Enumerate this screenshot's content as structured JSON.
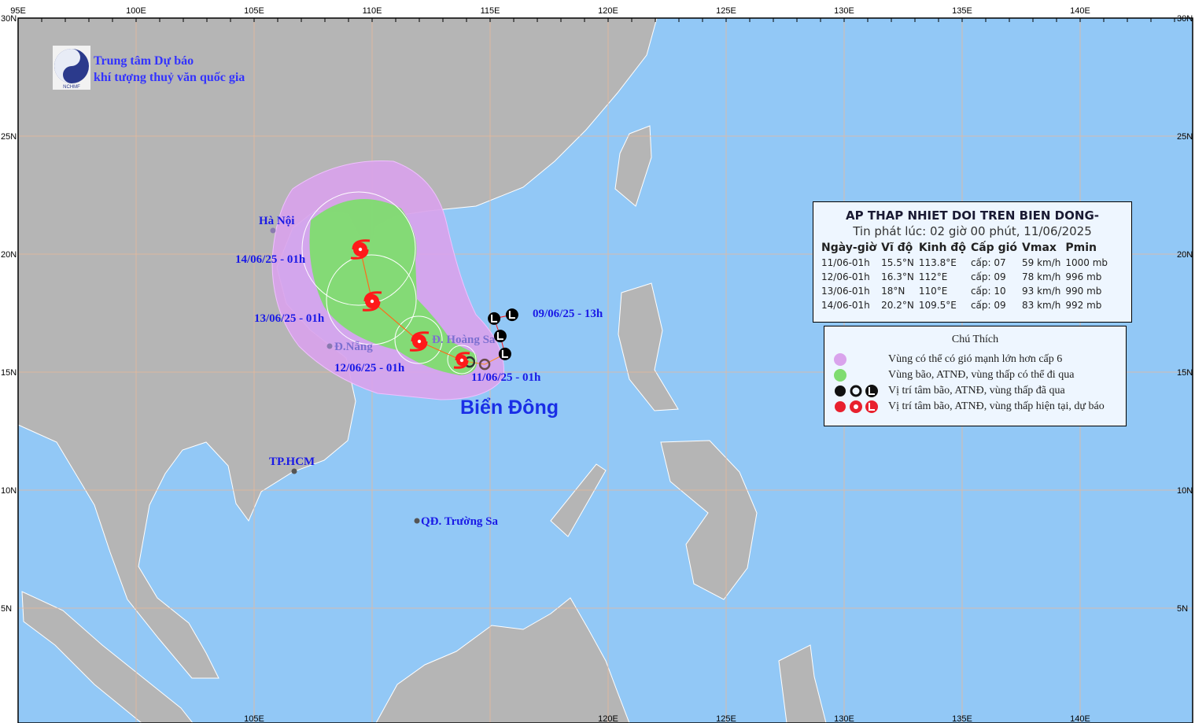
{
  "map": {
    "colors": {
      "land": "#b5b5b5",
      "ocean": "#92c8f6",
      "grid": "#e8b89a",
      "strong_wind_zone": "#d9a3ec",
      "storm_zone": "#7fdc70",
      "past_track": "#000000",
      "forecast_track": "#ff1a1a"
    },
    "lon_ticks": [
      "95E",
      "100E",
      "105E",
      "110E",
      "115E",
      "120E",
      "125E",
      "130E",
      "135E",
      "140E"
    ],
    "lon_values": [
      95,
      100,
      105,
      110,
      115,
      120,
      125,
      130,
      135,
      140
    ],
    "lat_ticks": [
      "30N",
      "25N",
      "20N",
      "15N",
      "10N",
      "5N"
    ],
    "lat_values": [
      30,
      25,
      20,
      15,
      10,
      5
    ],
    "bottom_ticks": [
      "105E",
      "120E",
      "125E",
      "130E",
      "135E",
      "140E"
    ],
    "bottom_values": [
      105,
      120,
      125,
      130,
      135,
      140
    ]
  },
  "logo": {
    "line1": "Trung tâm Dự báo",
    "line2": "khí tượng thuỷ văn quốc gia",
    "abbr": "NCHMF"
  },
  "places": [
    {
      "name": "Hà Nội",
      "lat": 21.0,
      "lon": 105.8
    },
    {
      "name": "Đ.Nẵng",
      "lat": 16.1,
      "lon": 108.2
    },
    {
      "name": "TP.HCM",
      "lat": 10.8,
      "lon": 106.7
    },
    {
      "name": "QĐ. Trường Sa",
      "lat": 8.7,
      "lon": 111.9
    },
    {
      "name": "Đ. Hoàng Sa",
      "lat": 16.5,
      "lon": 112.2
    }
  ],
  "sea_label": "Biển Đông",
  "track_labels": [
    {
      "text": "09/06/25 - 13h",
      "lat": 17.5,
      "lon": 116.8
    },
    {
      "text": "11/06/25 - 01h",
      "lat": 14.8,
      "lon": 114.2
    },
    {
      "text": "12/06/25 - 01h",
      "lat": 15.2,
      "lon": 108.4
    },
    {
      "text": "13/06/25 - 01h",
      "lat": 17.3,
      "lon": 105.0
    },
    {
      "text": "14/06/25 - 01h",
      "lat": 19.8,
      "lon": 104.2
    }
  ],
  "past_track": [
    {
      "type": "L",
      "lat": 17.43,
      "lon": 115.93
    },
    {
      "type": "L",
      "lat": 17.27,
      "lon": 115.17
    },
    {
      "type": "L",
      "lat": 16.53,
      "lon": 115.43
    },
    {
      "type": "L",
      "lat": 15.77,
      "lon": 115.63
    },
    {
      "type": "O",
      "lat": 15.33,
      "lon": 114.77
    },
    {
      "type": "O",
      "lat": 15.43,
      "lon": 114.13
    }
  ],
  "forecast_track": [
    {
      "time": "11/06-01h",
      "lat": 15.5,
      "lon": 113.8
    },
    {
      "time": "12/06-01h",
      "lat": 16.3,
      "lon": 112.0
    },
    {
      "time": "13/06-01h",
      "lat": 18.0,
      "lon": 110.0
    },
    {
      "time": "14/06-01h",
      "lat": 20.2,
      "lon": 109.5
    }
  ],
  "info": {
    "title": "AP THAP NHIET DOI TREN BIEN DONG-",
    "issued": "Tin phát lúc: 02 giờ 00 phút, 11/06/2025",
    "headers": [
      "Ngày-giờ",
      "Vĩ độ",
      "Kinh độ",
      "Cấp gió",
      "Vmax",
      "Pmin"
    ],
    "rows": [
      [
        "11/06-01h",
        "15.5°N",
        "113.8°E",
        "cấp: 07",
        "59 km/h",
        "1000 mb"
      ],
      [
        "12/06-01h",
        "16.3°N",
        "112°E",
        "cấp: 09",
        "78 km/h",
        "996 mb"
      ],
      [
        "13/06-01h",
        "18°N",
        "110°E",
        "cấp: 10",
        "93 km/h",
        "990 mb"
      ],
      [
        "14/06-01h",
        "20.2°N",
        "109.5°E",
        "cấp: 09",
        "83 km/h",
        "992 mb"
      ]
    ]
  },
  "legend": {
    "title": "Chú Thích",
    "items": [
      {
        "label": "Vùng có thể có gió mạnh lớn hơn cấp 6",
        "icon": "purple-circle"
      },
      {
        "label": "Vùng bão, ATNĐ, vùng thấp có thể đi qua",
        "icon": "green-circle"
      },
      {
        "label": "Vị trí tâm bão, ATNĐ, vùng thấp đã qua",
        "icon": "black-storm-symbols"
      },
      {
        "label": "Vị trí tâm bão, ATNĐ, vùng thấp hiện tại, dự báo",
        "icon": "red-storm-symbols"
      }
    ]
  }
}
